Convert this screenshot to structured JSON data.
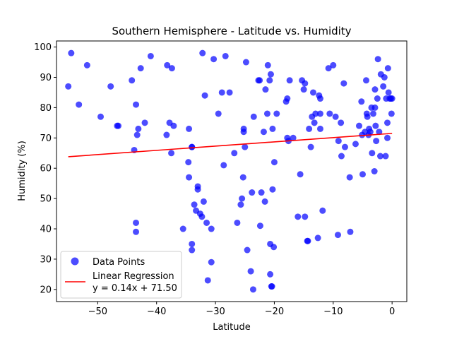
{
  "chart_data": {
    "type": "scatter",
    "title": "Southern Hemisphere - Latitude vs. Humidity",
    "xlabel": "Latitude",
    "ylabel": "Humidity (%)",
    "xlim": [
      -57,
      2.5
    ],
    "ylim": [
      16,
      102
    ],
    "xticks": [
      -50,
      -40,
      -30,
      -20,
      -10,
      0
    ],
    "yticks": [
      20,
      30,
      40,
      50,
      60,
      70,
      80,
      90,
      100
    ],
    "grid": false,
    "legend_position": "lower-left",
    "series": [
      {
        "name": "Data Points",
        "kind": "scatter",
        "color": "#0000ff",
        "points": [
          [
            -55.0,
            87
          ],
          [
            -54.5,
            98
          ],
          [
            -53.2,
            81
          ],
          [
            -51.8,
            94
          ],
          [
            -49.5,
            77
          ],
          [
            -47.8,
            87
          ],
          [
            -46.7,
            74
          ],
          [
            -46.5,
            74
          ],
          [
            -44.2,
            89
          ],
          [
            -43.5,
            81
          ],
          [
            -43.3,
            71
          ],
          [
            -43.1,
            73
          ],
          [
            -42.7,
            93
          ],
          [
            -42.0,
            75
          ],
          [
            -41.0,
            97
          ],
          [
            -43.8,
            66
          ],
          [
            -43.5,
            42
          ],
          [
            -43.5,
            39
          ],
          [
            -38.2,
            94
          ],
          [
            -37.8,
            75
          ],
          [
            -37.4,
            93
          ],
          [
            -37.1,
            74
          ],
          [
            -37.5,
            65
          ],
          [
            -38.3,
            71
          ],
          [
            -35.5,
            40
          ],
          [
            -34.5,
            73
          ],
          [
            -34.6,
            62
          ],
          [
            -34.5,
            57
          ],
          [
            -34.0,
            67
          ],
          [
            -34.0,
            67
          ],
          [
            -34.0,
            35
          ],
          [
            -34.0,
            33
          ],
          [
            -33.6,
            48
          ],
          [
            -33.3,
            46
          ],
          [
            -33.0,
            54
          ],
          [
            -33.0,
            53
          ],
          [
            -32.6,
            45
          ],
          [
            -32.3,
            44
          ],
          [
            -32.0,
            49
          ],
          [
            -31.8,
            84
          ],
          [
            -32.2,
            98
          ],
          [
            -31.5,
            42
          ],
          [
            -31.3,
            23
          ],
          [
            -30.7,
            40
          ],
          [
            -30.7,
            29
          ],
          [
            -30.3,
            96
          ],
          [
            -29.5,
            78
          ],
          [
            -28.9,
            85
          ],
          [
            -28.6,
            61
          ],
          [
            -28.3,
            97
          ],
          [
            -27.6,
            85
          ],
          [
            -26.8,
            65
          ],
          [
            -26.3,
            42
          ],
          [
            -25.7,
            48
          ],
          [
            -25.5,
            50
          ],
          [
            -25.3,
            57
          ],
          [
            -25.2,
            73
          ],
          [
            -25.2,
            72
          ],
          [
            -25.0,
            67
          ],
          [
            -24.8,
            95
          ],
          [
            -24.6,
            33
          ],
          [
            -24.0,
            26
          ],
          [
            -23.8,
            52
          ],
          [
            -23.6,
            20
          ],
          [
            -23.5,
            77
          ],
          [
            -22.7,
            89
          ],
          [
            -22.5,
            89
          ],
          [
            -22.4,
            41
          ],
          [
            -22.2,
            52
          ],
          [
            -21.8,
            72
          ],
          [
            -21.6,
            49
          ],
          [
            -21.5,
            86
          ],
          [
            -21.2,
            78
          ],
          [
            -21.1,
            94
          ],
          [
            -20.8,
            89
          ],
          [
            -20.6,
            91
          ],
          [
            -20.7,
            25
          ],
          [
            -20.7,
            35
          ],
          [
            -20.5,
            21
          ],
          [
            -20.4,
            21
          ],
          [
            -20.3,
            73
          ],
          [
            -20.3,
            53
          ],
          [
            -20.1,
            34
          ],
          [
            -20.0,
            62
          ],
          [
            -19.6,
            78
          ],
          [
            -18.0,
            82
          ],
          [
            -17.8,
            83
          ],
          [
            -17.8,
            70
          ],
          [
            -17.6,
            69
          ],
          [
            -17.4,
            89
          ],
          [
            -16.8,
            70
          ],
          [
            -16.0,
            44
          ],
          [
            -15.6,
            58
          ],
          [
            -15.3,
            89
          ],
          [
            -15.0,
            86
          ],
          [
            -14.8,
            88
          ],
          [
            -14.8,
            44
          ],
          [
            -14.4,
            36
          ],
          [
            -14.3,
            36
          ],
          [
            -14.1,
            73
          ],
          [
            -13.8,
            67
          ],
          [
            -13.6,
            77
          ],
          [
            -13.4,
            85
          ],
          [
            -13.2,
            75
          ],
          [
            -13.0,
            78
          ],
          [
            -12.6,
            37
          ],
          [
            -12.4,
            84
          ],
          [
            -12.2,
            83
          ],
          [
            -12.2,
            78
          ],
          [
            -12.2,
            73
          ],
          [
            -11.8,
            46
          ],
          [
            -10.8,
            93
          ],
          [
            -10.6,
            78
          ],
          [
            -10.0,
            94
          ],
          [
            -9.6,
            77
          ],
          [
            -9.2,
            38
          ],
          [
            -9.1,
            69
          ],
          [
            -8.7,
            75
          ],
          [
            -8.6,
            64
          ],
          [
            -8.2,
            88
          ],
          [
            -8.0,
            67
          ],
          [
            -7.2,
            57
          ],
          [
            -7.1,
            39
          ],
          [
            -6.2,
            68
          ],
          [
            -5.6,
            74
          ],
          [
            -5.2,
            82
          ],
          [
            -5.1,
            71
          ],
          [
            -5.0,
            58
          ],
          [
            -4.6,
            72
          ],
          [
            -4.4,
            89
          ],
          [
            -4.3,
            78
          ],
          [
            -4.2,
            77
          ],
          [
            -4.0,
            71
          ],
          [
            -3.9,
            73
          ],
          [
            -3.7,
            72
          ],
          [
            -3.5,
            80
          ],
          [
            -3.4,
            65
          ],
          [
            -3.2,
            78
          ],
          [
            -3.0,
            59
          ],
          [
            -2.9,
            86
          ],
          [
            -2.9,
            80
          ],
          [
            -2.8,
            74
          ],
          [
            -2.7,
            69
          ],
          [
            -2.5,
            83
          ],
          [
            -2.4,
            96
          ],
          [
            -2.2,
            72
          ],
          [
            -2.0,
            64
          ],
          [
            -1.9,
            91
          ],
          [
            -1.5,
            87
          ],
          [
            -1.3,
            90
          ],
          [
            -1.1,
            64
          ],
          [
            -1.0,
            83
          ],
          [
            -0.8,
            70
          ],
          [
            -0.8,
            75
          ],
          [
            -0.7,
            93
          ],
          [
            -0.6,
            85
          ],
          [
            -0.4,
            83
          ],
          [
            -0.2,
            83
          ],
          [
            -0.1,
            78
          ],
          [
            0.0,
            83
          ]
        ]
      },
      {
        "name": "Linear Regression",
        "kind": "line",
        "color": "#ff0000",
        "equation": "y = 0.14x + 71.50",
        "x": [
          -55.0,
          0.0
        ],
        "y": [
          63.8,
          71.5
        ]
      }
    ]
  }
}
